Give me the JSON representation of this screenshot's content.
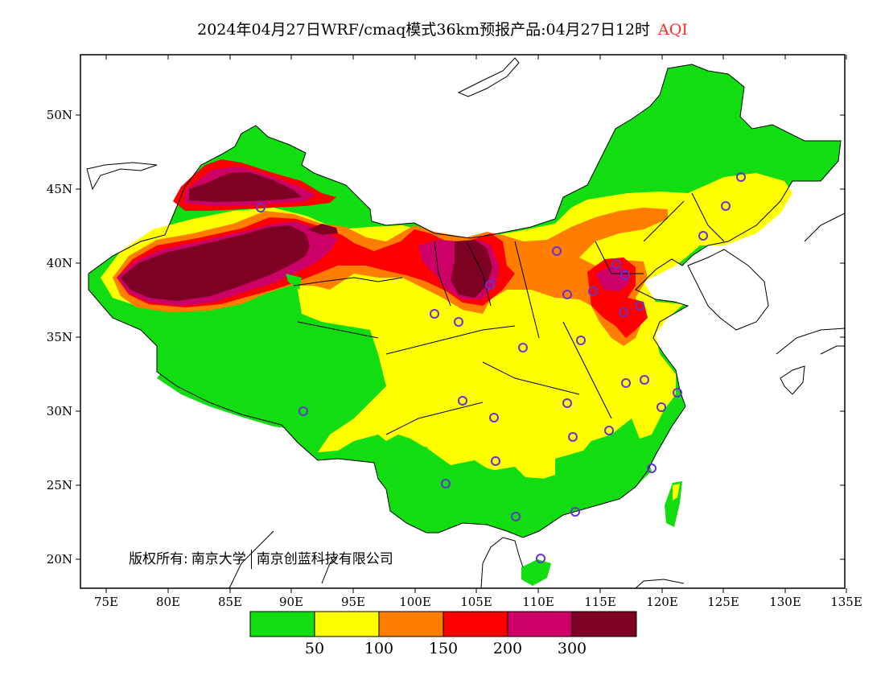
{
  "title": {
    "main": "2024年04月27日WRF/cmaq模式36km预报产品:04月27日12时",
    "variable": "AQI"
  },
  "axes": {
    "lat_labels": [
      "50N",
      "45N",
      "40N",
      "35N",
      "30N",
      "25N",
      "20N"
    ],
    "lon_labels": [
      "75E",
      "80E",
      "85E",
      "90E",
      "95E",
      "100E",
      "105E",
      "110E",
      "115E",
      "120E",
      "125E",
      "130E",
      "135E"
    ]
  },
  "copyright": {
    "prefix": "版权所有:",
    "org1": "南京大学",
    "org2": "南京创蓝科技有限公司"
  },
  "colorbar": {
    "colors": [
      "#11dd11",
      "#ffff00",
      "#ff7e00",
      "#ff0000",
      "#cc0066",
      "#7e0023"
    ],
    "labels": [
      "50",
      "100",
      "150",
      "200",
      "300"
    ]
  },
  "colors": {
    "background_sea": "#ffffff",
    "station_marker": "#6633cc"
  }
}
